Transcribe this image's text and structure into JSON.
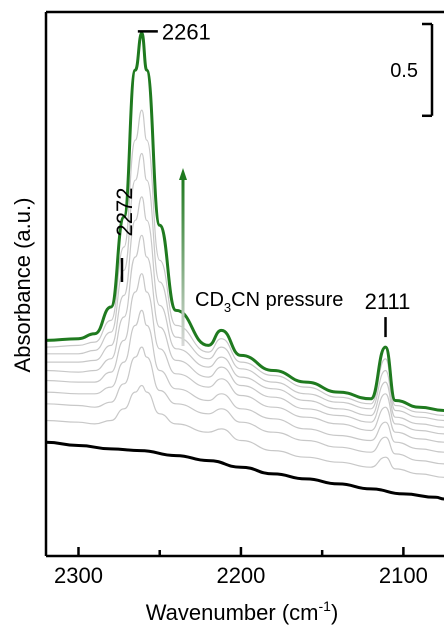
{
  "chart_data": {
    "type": "line",
    "title": "",
    "xlabel": "Wavenumber",
    "xlabel_unit_base": "cm",
    "xlabel_unit_exp": "-1",
    "ylabel": "Absorbance (a.u.)",
    "xlim": [
      2320,
      2075
    ],
    "x_reversed": true,
    "x_ticks": [
      2300,
      2200,
      2100
    ],
    "x_tick_labels": [
      "2300",
      "2200",
      "2100"
    ],
    "x_minor_ticks": [
      2250,
      2150
    ],
    "ylim": [
      0,
      3.02
    ],
    "grid": false,
    "legend": "none",
    "colors": {
      "highlight": "#1f7a1f",
      "baseline": "#000000",
      "intermediate": "#c8c8c8",
      "arrow_start": "#1f7a1f",
      "arrow_end": "#d9d9d9"
    },
    "annotations": {
      "peak_main": "2261",
      "peak_shoulder": "2272",
      "peak_small": "2111",
      "arrow_label_prefix": "CD",
      "arrow_label_sub": "3",
      "arrow_label_suffix": "CN pressure",
      "scale_bar_label": "0.5",
      "scale_bar_value": 0.5
    },
    "series": [
      {
        "role": "baseline",
        "values": [
          [
            2320,
            0.55
          ],
          [
            2300,
            0.53
          ],
          [
            2280,
            0.51
          ],
          [
            2262,
            0.5
          ],
          [
            2240,
            0.47
          ],
          [
            2220,
            0.44
          ],
          [
            2200,
            0.4
          ],
          [
            2180,
            0.36
          ],
          [
            2160,
            0.33
          ],
          [
            2140,
            0.3
          ],
          [
            2120,
            0.27
          ],
          [
            2100,
            0.24
          ],
          [
            2080,
            0.22
          ],
          [
            2075,
            0.21
          ]
        ]
      },
      {
        "role": "intermediate",
        "values": [
          [
            2320,
            0.68
          ],
          [
            2300,
            0.67
          ],
          [
            2290,
            0.66
          ],
          [
            2280,
            0.68
          ],
          [
            2272,
            0.75
          ],
          [
            2265,
            0.85
          ],
          [
            2261,
            0.89
          ],
          [
            2258,
            0.85
          ],
          [
            2250,
            0.72
          ],
          [
            2240,
            0.66
          ],
          [
            2220,
            0.61
          ],
          [
            2212,
            0.63
          ],
          [
            2200,
            0.56
          ],
          [
            2180,
            0.5
          ],
          [
            2160,
            0.46
          ],
          [
            2140,
            0.43
          ],
          [
            2120,
            0.4
          ],
          [
            2111,
            0.46
          ],
          [
            2105,
            0.39
          ],
          [
            2090,
            0.36
          ],
          [
            2075,
            0.34
          ]
        ]
      },
      {
        "role": "intermediate",
        "values": [
          [
            2320,
            0.78
          ],
          [
            2300,
            0.77
          ],
          [
            2290,
            0.76
          ],
          [
            2280,
            0.79
          ],
          [
            2272,
            0.9
          ],
          [
            2265,
            1.06
          ],
          [
            2261,
            1.12
          ],
          [
            2258,
            1.06
          ],
          [
            2250,
            0.86
          ],
          [
            2240,
            0.78
          ],
          [
            2220,
            0.72
          ],
          [
            2212,
            0.75
          ],
          [
            2200,
            0.67
          ],
          [
            2180,
            0.61
          ],
          [
            2160,
            0.56
          ],
          [
            2140,
            0.52
          ],
          [
            2120,
            0.49
          ],
          [
            2111,
            0.58
          ],
          [
            2105,
            0.48
          ],
          [
            2090,
            0.44
          ],
          [
            2075,
            0.42
          ]
        ]
      },
      {
        "role": "intermediate",
        "values": [
          [
            2320,
            0.85
          ],
          [
            2300,
            0.84
          ],
          [
            2290,
            0.84
          ],
          [
            2280,
            0.88
          ],
          [
            2272,
            1.03
          ],
          [
            2265,
            1.25
          ],
          [
            2261,
            1.34
          ],
          [
            2258,
            1.25
          ],
          [
            2250,
            0.98
          ],
          [
            2240,
            0.87
          ],
          [
            2220,
            0.8
          ],
          [
            2212,
            0.84
          ],
          [
            2200,
            0.75
          ],
          [
            2180,
            0.69
          ],
          [
            2160,
            0.63
          ],
          [
            2140,
            0.59
          ],
          [
            2120,
            0.56
          ],
          [
            2111,
            0.67
          ],
          [
            2105,
            0.55
          ],
          [
            2090,
            0.51
          ],
          [
            2075,
            0.49
          ]
        ]
      },
      {
        "role": "intermediate",
        "values": [
          [
            2320,
            0.92
          ],
          [
            2300,
            0.91
          ],
          [
            2290,
            0.91
          ],
          [
            2280,
            0.97
          ],
          [
            2272,
            1.16
          ],
          [
            2265,
            1.45
          ],
          [
            2261,
            1.56
          ],
          [
            2258,
            1.45
          ],
          [
            2250,
            1.11
          ],
          [
            2240,
            0.96
          ],
          [
            2220,
            0.88
          ],
          [
            2212,
            0.93
          ],
          [
            2200,
            0.83
          ],
          [
            2180,
            0.76
          ],
          [
            2160,
            0.7
          ],
          [
            2140,
            0.66
          ],
          [
            2120,
            0.62
          ],
          [
            2111,
            0.76
          ],
          [
            2105,
            0.61
          ],
          [
            2090,
            0.57
          ],
          [
            2075,
            0.55
          ]
        ]
      },
      {
        "role": "intermediate",
        "values": [
          [
            2320,
            0.98
          ],
          [
            2300,
            0.97
          ],
          [
            2290,
            0.98
          ],
          [
            2280,
            1.05
          ],
          [
            2272,
            1.3
          ],
          [
            2265,
            1.66
          ],
          [
            2261,
            1.79
          ],
          [
            2258,
            1.66
          ],
          [
            2250,
            1.24
          ],
          [
            2240,
            1.04
          ],
          [
            2220,
            0.94
          ],
          [
            2212,
            1.0
          ],
          [
            2200,
            0.89
          ],
          [
            2180,
            0.82
          ],
          [
            2160,
            0.75
          ],
          [
            2140,
            0.71
          ],
          [
            2120,
            0.67
          ],
          [
            2111,
            0.84
          ],
          [
            2105,
            0.66
          ],
          [
            2090,
            0.62
          ],
          [
            2075,
            0.6
          ]
        ]
      },
      {
        "role": "intermediate",
        "values": [
          [
            2320,
            1.03
          ],
          [
            2300,
            1.03
          ],
          [
            2290,
            1.04
          ],
          [
            2280,
            1.13
          ],
          [
            2272,
            1.43
          ],
          [
            2265,
            1.88
          ],
          [
            2261,
            2.02
          ],
          [
            2258,
            1.88
          ],
          [
            2250,
            1.37
          ],
          [
            2240,
            1.11
          ],
          [
            2220,
            1.0
          ],
          [
            2212,
            1.06
          ],
          [
            2200,
            0.94
          ],
          [
            2180,
            0.87
          ],
          [
            2160,
            0.8
          ],
          [
            2140,
            0.75
          ],
          [
            2120,
            0.71
          ],
          [
            2111,
            0.91
          ],
          [
            2105,
            0.7
          ],
          [
            2090,
            0.66
          ],
          [
            2075,
            0.64
          ]
        ]
      },
      {
        "role": "intermediate",
        "values": [
          [
            2320,
            1.08
          ],
          [
            2300,
            1.08
          ],
          [
            2290,
            1.1
          ],
          [
            2280,
            1.21
          ],
          [
            2272,
            1.58
          ],
          [
            2265,
            2.12
          ],
          [
            2261,
            2.28
          ],
          [
            2258,
            2.12
          ],
          [
            2250,
            1.51
          ],
          [
            2240,
            1.18
          ],
          [
            2220,
            1.05
          ],
          [
            2212,
            1.12
          ],
          [
            2200,
            0.99
          ],
          [
            2180,
            0.91
          ],
          [
            2160,
            0.84
          ],
          [
            2140,
            0.79
          ],
          [
            2120,
            0.75
          ],
          [
            2111,
            0.98
          ],
          [
            2105,
            0.74
          ],
          [
            2090,
            0.7
          ],
          [
            2075,
            0.68
          ]
        ]
      },
      {
        "role": "intermediate",
        "values": [
          [
            2320,
            1.12
          ],
          [
            2300,
            1.13
          ],
          [
            2290,
            1.15
          ],
          [
            2280,
            1.28
          ],
          [
            2272,
            1.72
          ],
          [
            2265,
            2.36
          ],
          [
            2261,
            2.54
          ],
          [
            2258,
            2.36
          ],
          [
            2250,
            1.64
          ],
          [
            2240,
            1.25
          ],
          [
            2220,
            1.09
          ],
          [
            2212,
            1.17
          ],
          [
            2200,
            1.03
          ],
          [
            2180,
            0.95
          ],
          [
            2160,
            0.88
          ],
          [
            2140,
            0.82
          ],
          [
            2120,
            0.78
          ],
          [
            2111,
            1.05
          ],
          [
            2105,
            0.77
          ],
          [
            2090,
            0.73
          ],
          [
            2075,
            0.71
          ]
        ]
      },
      {
        "role": "highlight",
        "values": [
          [
            2320,
            1.16
          ],
          [
            2300,
            1.17
          ],
          [
            2290,
            1.2
          ],
          [
            2280,
            1.36
          ],
          [
            2272,
            1.9
          ],
          [
            2265,
            2.78
          ],
          [
            2261,
            3.0
          ],
          [
            2258,
            2.78
          ],
          [
            2250,
            1.85
          ],
          [
            2240,
            1.34
          ],
          [
            2220,
            1.13
          ],
          [
            2212,
            1.22
          ],
          [
            2200,
            1.07
          ],
          [
            2180,
            0.98
          ],
          [
            2160,
            0.91
          ],
          [
            2140,
            0.85
          ],
          [
            2120,
            0.81
          ],
          [
            2111,
            1.12
          ],
          [
            2105,
            0.8
          ],
          [
            2090,
            0.76
          ],
          [
            2075,
            0.74
          ]
        ]
      }
    ]
  }
}
